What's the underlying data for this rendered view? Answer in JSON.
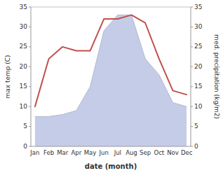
{
  "chart_data": {
    "type": "line",
    "xlabel": "date (month)",
    "ylabel": "max temp (C)",
    "y2label": "med. precipitation (kg/m2)",
    "categories": [
      "Jan",
      "Feb",
      "Mar",
      "Apr",
      "May",
      "Jun",
      "Jul",
      "Aug",
      "Sep",
      "Oct",
      "Nov",
      "Dec"
    ],
    "series": [
      {
        "type": "area",
        "axis": "y2",
        "color": "#c5cce8",
        "values": [
          7.5,
          7.5,
          8,
          9,
          15,
          29,
          33,
          33,
          22,
          18,
          11,
          10
        ]
      },
      {
        "type": "line",
        "color": "#c0504d",
        "values": [
          10,
          22,
          25,
          24,
          24,
          32,
          32,
          33,
          31,
          22,
          14,
          13
        ]
      }
    ],
    "ylim": [
      0,
      35
    ],
    "yticks": [
      0,
      5,
      10,
      15,
      20,
      25,
      30,
      35
    ],
    "y2lim": [
      0,
      35
    ],
    "y2ticks": [
      0,
      5,
      10,
      15,
      20,
      25,
      30,
      35
    ],
    "grid": false
  }
}
